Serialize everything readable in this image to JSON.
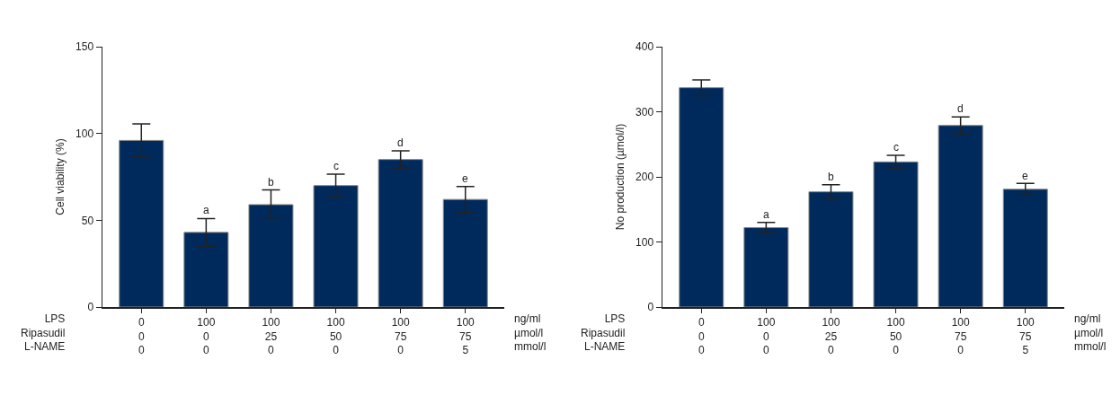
{
  "chart_data": [
    {
      "type": "bar",
      "ylabel": "Cell viability (%)",
      "categories": [
        "0\n0\n0",
        "100\n0\n0",
        "100\n25\n0",
        "100\n50\n0",
        "100\n75\n0",
        "100\n75\n5"
      ],
      "values": [
        96,
        43,
        59,
        70,
        85,
        62
      ],
      "errors": [
        9.5,
        8,
        8.5,
        6.5,
        5,
        7.5
      ],
      "color": "#002a5c",
      "ylim": [
        0,
        150
      ],
      "yticks": [
        0,
        50,
        100,
        150
      ],
      "annotations": [
        "LPS\nRipasudil\nL-NAME",
        "ng/ml\nµmol/l\nmmol/l",
        {
          "text": "a",
          "x": "100\n0\n0",
          "y": 51
        },
        {
          "text": "b",
          "x": "100\n25\n0",
          "y": 67.5
        },
        {
          "text": "c",
          "x": "100\n50\n0",
          "y": 76.5
        },
        {
          "text": "d",
          "x": "100\n75\n0",
          "y": 90
        },
        {
          "text": "e",
          "x": "100\n75\n5",
          "y": 69.5
        }
      ]
    },
    {
      "type": "bar",
      "ylabel": "No production (µmol/l)",
      "categories": [
        "0\n0\n0",
        "100\n0\n0",
        "100\n25\n0",
        "100\n50\n0",
        "100\n75\n0",
        "100\n75\n5"
      ],
      "values": [
        337,
        122,
        177,
        223,
        279,
        181
      ],
      "errors": [
        12,
        8,
        11,
        10,
        13,
        9
      ],
      "color": "#002a5c",
      "ylim": [
        0,
        400
      ],
      "yticks": [
        0,
        100,
        200,
        300,
        400
      ],
      "annotations": [
        "LPS\nRipasudil\nL-NAME",
        "ng/ml\nµmol/l\nmmol/l",
        {
          "text": "a",
          "x": "100\n0\n0",
          "y": 130
        },
        {
          "text": "b",
          "x": "100\n25\n0",
          "y": 188
        },
        {
          "text": "c",
          "x": "100\n50\n0",
          "y": 233
        },
        {
          "text": "d",
          "x": "100\n75\n0",
          "y": 292
        },
        {
          "text": "e",
          "x": "100\n75\n5",
          "y": 189
        }
      ]
    }
  ]
}
